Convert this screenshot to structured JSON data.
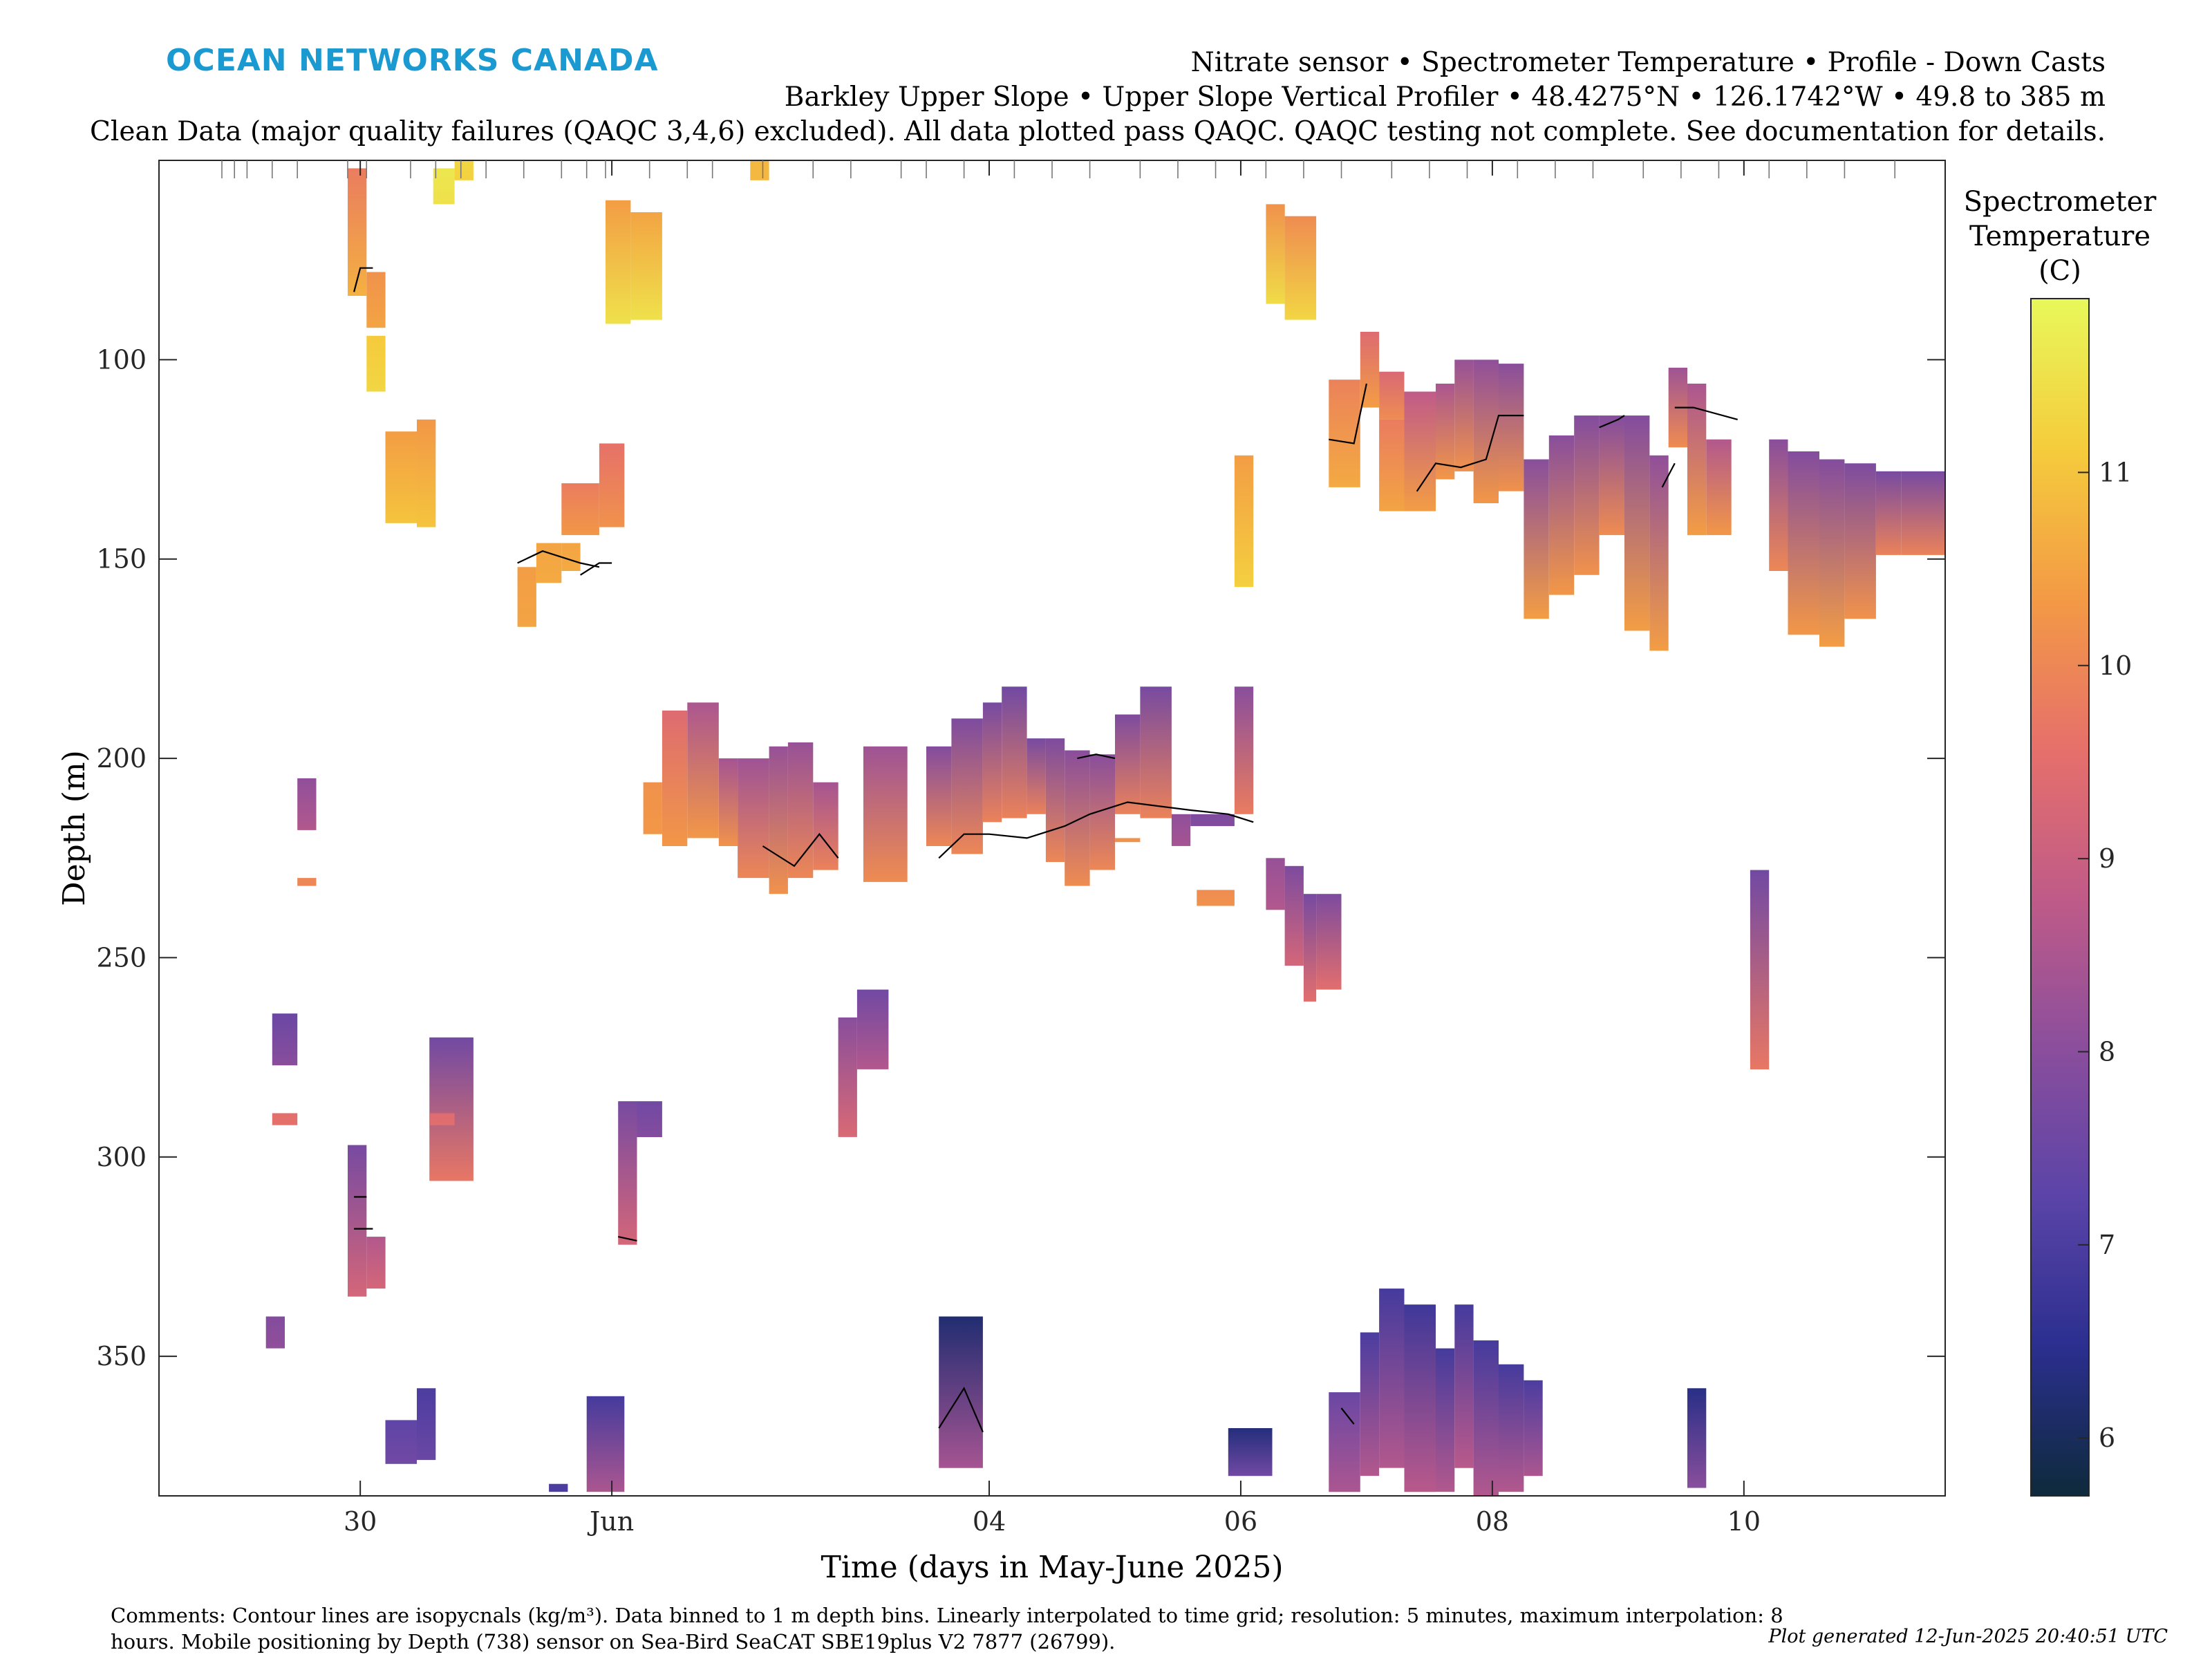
{
  "header": {
    "brand": "OCEAN NETWORKS CANADA",
    "title_line1": "Nitrate sensor • Spectrometer Temperature • Profile - Down Casts",
    "title_line2": "Barkley Upper Slope • Upper Slope Vertical Profiler • 48.4275°N • 126.1742°W • 49.8 to 385 m",
    "title_line3": "Clean Data (major quality failures (QAQC 3,4,6) excluded). All data plotted pass QAQC. QAQC testing not complete. See documentation for details."
  },
  "footer": {
    "comments": "Comments: Contour lines are isopycnals (kg/m³). Data binned to 1 m depth bins. Linearly interpolated to time grid; resolution: 5 minutes, maximum interpolation: 8 hours. Mobile positioning by Depth (738) sensor on Sea-Bird SeaCAT SBE19plus V2 7877 (26799).",
    "generated": "Plot generated 12-Jun-2025 20:40:51 UTC"
  },
  "chart_data": {
    "type": "heatmap",
    "xlabel": "Time (days in May-June 2025)",
    "ylabel": "Depth (m)",
    "xlim": [
      28.4,
      42.6
    ],
    "ylim": [
      385,
      50
    ],
    "y_reversed": true,
    "x_ticks": [
      {
        "value": 30,
        "label": "30"
      },
      {
        "value": 32,
        "label": "Jun"
      },
      {
        "value": 35,
        "label": "04"
      },
      {
        "value": 37,
        "label": "06"
      },
      {
        "value": 39,
        "label": "08"
      },
      {
        "value": 41,
        "label": "10"
      }
    ],
    "y_ticks": [
      100,
      150,
      200,
      250,
      300,
      350
    ],
    "colorbar": {
      "label_lines": [
        "Spectrometer",
        "Temperature",
        "(C)"
      ],
      "range": [
        5.7,
        11.9
      ],
      "ticks": [
        6,
        7,
        8,
        9,
        10,
        11
      ],
      "colors": [
        "#0e2a3b",
        "#2b2f8f",
        "#5b44a8",
        "#8b4e9c",
        "#c05b88",
        "#e6706a",
        "#f39a45",
        "#f5cc3c",
        "#e8f85a"
      ]
    },
    "cast_times": [
      28.9,
      29.0,
      29.1,
      29.3,
      29.5,
      29.9,
      30.05,
      30.4,
      30.6,
      30.8,
      31.0,
      31.3,
      31.6,
      31.8,
      31.95,
      32.3,
      32.6,
      32.8,
      33.2,
      33.6,
      33.9,
      34.3,
      34.5,
      34.8,
      35.2,
      35.5,
      35.8,
      36.2,
      36.5,
      36.8,
      37.2,
      37.5,
      37.8,
      38.2,
      38.5,
      38.8,
      39.2,
      39.5,
      39.8,
      40.2,
      40.5,
      40.8,
      41.2,
      41.5,
      41.8,
      42.2
    ],
    "cells": [
      {
        "x0": 29.9,
        "x1": 30.05,
        "y0": 52,
        "y1": 84,
        "t0": 9.8,
        "t1": 10.7
      },
      {
        "x0": 30.05,
        "x1": 30.2,
        "y0": 78,
        "y1": 92,
        "t0": 10.2,
        "t1": 10.5
      },
      {
        "x0": 30.05,
        "x1": 30.2,
        "y0": 94,
        "y1": 108,
        "t0": 11.1,
        "t1": 11.3
      },
      {
        "x0": 30.58,
        "x1": 30.75,
        "y0": 52,
        "y1": 61,
        "t0": 11.6,
        "t1": 11.5
      },
      {
        "x0": 30.75,
        "x1": 30.9,
        "y0": 50,
        "y1": 55,
        "t0": 11.3,
        "t1": 11.2
      },
      {
        "x0": 31.95,
        "x1": 32.15,
        "y0": 60,
        "y1": 91,
        "t0": 10.4,
        "t1": 11.5
      },
      {
        "x0": 32.15,
        "x1": 32.4,
        "y0": 63,
        "y1": 90,
        "t0": 10.5,
        "t1": 11.5
      },
      {
        "x0": 30.2,
        "x1": 30.45,
        "y0": 118,
        "y1": 141,
        "t0": 10.4,
        "t1": 11.0
      },
      {
        "x0": 30.45,
        "x1": 30.6,
        "y0": 115,
        "y1": 142,
        "t0": 10.3,
        "t1": 11.0
      },
      {
        "x0": 31.25,
        "x1": 31.4,
        "y0": 152,
        "y1": 167,
        "t0": 10.4,
        "t1": 10.5
      },
      {
        "x0": 31.4,
        "x1": 31.6,
        "y0": 146,
        "y1": 156,
        "t0": 10.5,
        "t1": 10.6
      },
      {
        "x0": 31.6,
        "x1": 31.75,
        "y0": 146,
        "y1": 153,
        "t0": 10.5,
        "t1": 10.6
      },
      {
        "x0": 31.6,
        "x1": 31.9,
        "y0": 131,
        "y1": 144,
        "t0": 9.8,
        "t1": 10.3
      },
      {
        "x0": 31.9,
        "x1": 32.1,
        "y0": 121,
        "y1": 142,
        "t0": 9.6,
        "t1": 10.2
      },
      {
        "x0": 33.1,
        "x1": 33.25,
        "y0": 50,
        "y1": 55,
        "t0": 10.8,
        "t1": 10.8
      },
      {
        "x0": 36.95,
        "x1": 37.1,
        "y0": 124,
        "y1": 157,
        "t0": 10.4,
        "t1": 11.2
      },
      {
        "x0": 37.2,
        "x1": 37.35,
        "y0": 61,
        "y1": 86,
        "t0": 10.2,
        "t1": 11.4
      },
      {
        "x0": 37.35,
        "x1": 37.6,
        "y0": 64,
        "y1": 90,
        "t0": 10.1,
        "t1": 11.3
      },
      {
        "x0": 37.7,
        "x1": 37.95,
        "y0": 105,
        "y1": 132,
        "t0": 9.9,
        "t1": 10.6
      },
      {
        "x0": 37.95,
        "x1": 38.1,
        "y0": 93,
        "y1": 112,
        "t0": 9.4,
        "t1": 10.4
      },
      {
        "x0": 38.1,
        "x1": 38.3,
        "y0": 103,
        "y1": 115,
        "t0": 9.3,
        "t1": 10.1
      },
      {
        "x0": 38.1,
        "x1": 38.3,
        "y0": 115,
        "y1": 138,
        "t0": 9.8,
        "t1": 10.5
      },
      {
        "x0": 38.3,
        "x1": 38.55,
        "y0": 108,
        "y1": 138,
        "t0": 8.8,
        "t1": 10.4
      },
      {
        "x0": 38.55,
        "x1": 38.7,
        "y0": 106,
        "y1": 130,
        "t0": 8.5,
        "t1": 10.3
      },
      {
        "x0": 38.7,
        "x1": 38.85,
        "y0": 100,
        "y1": 128,
        "t0": 8.2,
        "t1": 10.2
      },
      {
        "x0": 38.85,
        "x1": 39.05,
        "y0": 100,
        "y1": 136,
        "t0": 8.1,
        "t1": 10.3
      },
      {
        "x0": 39.05,
        "x1": 39.25,
        "y0": 101,
        "y1": 133,
        "t0": 8.0,
        "t1": 10.2
      },
      {
        "x0": 39.25,
        "x1": 39.45,
        "y0": 125,
        "y1": 165,
        "t0": 8.0,
        "t1": 10.4
      },
      {
        "x0": 39.45,
        "x1": 39.65,
        "y0": 119,
        "y1": 159,
        "t0": 8.0,
        "t1": 10.3
      },
      {
        "x0": 39.65,
        "x1": 39.85,
        "y0": 114,
        "y1": 154,
        "t0": 7.9,
        "t1": 10.2
      },
      {
        "x0": 39.85,
        "x1": 40.05,
        "y0": 114,
        "y1": 144,
        "t0": 7.9,
        "t1": 10.1
      },
      {
        "x0": 40.05,
        "x1": 40.25,
        "y0": 114,
        "y1": 168,
        "t0": 7.9,
        "t1": 10.4
      },
      {
        "x0": 40.25,
        "x1": 40.4,
        "y0": 124,
        "y1": 173,
        "t0": 8.1,
        "t1": 10.4
      },
      {
        "x0": 40.4,
        "x1": 40.55,
        "y0": 102,
        "y1": 122,
        "t0": 8.3,
        "t1": 10.1
      },
      {
        "x0": 40.55,
        "x1": 40.7,
        "y0": 106,
        "y1": 144,
        "t0": 8.5,
        "t1": 10.4
      },
      {
        "x0": 40.7,
        "x1": 40.9,
        "y0": 120,
        "y1": 144,
        "t0": 8.6,
        "t1": 10.3
      },
      {
        "x0": 41.2,
        "x1": 41.35,
        "y0": 120,
        "y1": 153,
        "t0": 8.0,
        "t1": 10.0
      },
      {
        "x0": 41.35,
        "x1": 41.6,
        "y0": 123,
        "y1": 169,
        "t0": 7.9,
        "t1": 10.3
      },
      {
        "x0": 41.6,
        "x1": 41.8,
        "y0": 125,
        "y1": 172,
        "t0": 7.9,
        "t1": 10.4
      },
      {
        "x0": 41.8,
        "x1": 42.05,
        "y0": 126,
        "y1": 165,
        "t0": 7.8,
        "t1": 10.2
      },
      {
        "x0": 42.05,
        "x1": 42.25,
        "y0": 128,
        "y1": 149,
        "t0": 7.7,
        "t1": 9.9
      },
      {
        "x0": 42.25,
        "x1": 42.6,
        "y0": 128,
        "y1": 149,
        "t0": 7.7,
        "t1": 9.9
      },
      {
        "x0": 32.25,
        "x1": 32.4,
        "y0": 206,
        "y1": 219,
        "t0": 10.2,
        "t1": 10.3
      },
      {
        "x0": 32.4,
        "x1": 32.6,
        "y0": 188,
        "y1": 222,
        "t0": 9.4,
        "t1": 10.3
      },
      {
        "x0": 32.6,
        "x1": 32.85,
        "y0": 186,
        "y1": 220,
        "t0": 8.5,
        "t1": 10.3
      },
      {
        "x0": 32.85,
        "x1": 33.0,
        "y0": 200,
        "y1": 222,
        "t0": 8.4,
        "t1": 10.2
      },
      {
        "x0": 33.0,
        "x1": 33.25,
        "y0": 200,
        "y1": 230,
        "t0": 8.3,
        "t1": 10.0
      },
      {
        "x0": 33.25,
        "x1": 33.4,
        "y0": 197,
        "y1": 234,
        "t0": 8.2,
        "t1": 10.2
      },
      {
        "x0": 33.4,
        "x1": 33.6,
        "y0": 196,
        "y1": 230,
        "t0": 8.2,
        "t1": 10.0
      },
      {
        "x0": 33.6,
        "x1": 33.8,
        "y0": 206,
        "y1": 228,
        "t0": 8.4,
        "t1": 9.9
      },
      {
        "x0": 34.0,
        "x1": 34.35,
        "y0": 197,
        "y1": 231,
        "t0": 8.3,
        "t1": 10.1
      },
      {
        "x0": 34.5,
        "x1": 34.7,
        "y0": 197,
        "y1": 222,
        "t0": 7.9,
        "t1": 10.0
      },
      {
        "x0": 34.7,
        "x1": 34.95,
        "y0": 190,
        "y1": 224,
        "t0": 7.8,
        "t1": 10.0
      },
      {
        "x0": 34.95,
        "x1": 35.1,
        "y0": 186,
        "y1": 216,
        "t0": 7.7,
        "t1": 9.9
      },
      {
        "x0": 35.1,
        "x1": 35.3,
        "y0": 182,
        "y1": 215,
        "t0": 7.6,
        "t1": 9.9
      },
      {
        "x0": 35.3,
        "x1": 35.45,
        "y0": 195,
        "y1": 214,
        "t0": 7.7,
        "t1": 9.9
      },
      {
        "x0": 35.45,
        "x1": 35.6,
        "y0": 195,
        "y1": 226,
        "t0": 7.8,
        "t1": 10.0
      },
      {
        "x0": 35.6,
        "x1": 35.8,
        "y0": 198,
        "y1": 232,
        "t0": 8.0,
        "t1": 10.1
      },
      {
        "x0": 35.8,
        "x1": 36.0,
        "y0": 199,
        "y1": 228,
        "t0": 8.0,
        "t1": 10.0
      },
      {
        "x0": 36.0,
        "x1": 36.2,
        "y0": 189,
        "y1": 214,
        "t0": 7.8,
        "t1": 9.9
      },
      {
        "x0": 36.2,
        "x1": 36.45,
        "y0": 182,
        "y1": 215,
        "t0": 7.7,
        "t1": 9.9
      },
      {
        "x0": 36.45,
        "x1": 36.6,
        "y0": 214,
        "y1": 222,
        "t0": 8.1,
        "t1": 8.4
      },
      {
        "x0": 36.6,
        "x1": 36.95,
        "y0": 214,
        "y1": 217,
        "t0": 7.8,
        "t1": 7.9
      },
      {
        "x0": 36.65,
        "x1": 36.95,
        "y0": 233,
        "y1": 237,
        "t0": 10.1,
        "t1": 10.2
      },
      {
        "x0": 36.95,
        "x1": 37.1,
        "y0": 182,
        "y1": 214,
        "t0": 8.0,
        "t1": 9.8
      },
      {
        "x0": 36.0,
        "x1": 36.2,
        "y0": 220,
        "y1": 221,
        "t0": 10.2,
        "t1": 10.2
      },
      {
        "x0": 37.2,
        "x1": 37.35,
        "y0": 225,
        "y1": 238,
        "t0": 8.2,
        "t1": 8.6
      },
      {
        "x0": 37.35,
        "x1": 37.5,
        "y0": 227,
        "y1": 252,
        "t0": 7.8,
        "t1": 9.2
      },
      {
        "x0": 37.5,
        "x1": 37.6,
        "y0": 234,
        "y1": 261,
        "t0": 7.7,
        "t1": 9.5
      },
      {
        "x0": 37.6,
        "x1": 37.8,
        "y0": 234,
        "y1": 258,
        "t0": 7.8,
        "t1": 9.5
      },
      {
        "x0": 29.5,
        "x1": 29.65,
        "y0": 205,
        "y1": 218,
        "t0": 8.1,
        "t1": 8.6
      },
      {
        "x0": 29.5,
        "x1": 29.65,
        "y0": 230,
        "y1": 232,
        "t0": 10.0,
        "t1": 10.0
      },
      {
        "x0": 41.05,
        "x1": 41.2,
        "y0": 228,
        "y1": 278,
        "t0": 7.6,
        "t1": 9.7
      },
      {
        "x0": 29.3,
        "x1": 29.5,
        "y0": 264,
        "y1": 277,
        "t0": 7.5,
        "t1": 8.0
      },
      {
        "x0": 29.3,
        "x1": 29.5,
        "y0": 289,
        "y1": 292,
        "t0": 9.5,
        "t1": 9.6
      },
      {
        "x0": 30.55,
        "x1": 30.9,
        "y0": 270,
        "y1": 306,
        "t0": 7.6,
        "t1": 9.7
      },
      {
        "x0": 30.55,
        "x1": 30.75,
        "y0": 289,
        "y1": 292,
        "t0": 9.4,
        "t1": 9.5
      },
      {
        "x0": 33.8,
        "x1": 33.95,
        "y0": 265,
        "y1": 295,
        "t0": 8.0,
        "t1": 9.3
      },
      {
        "x0": 33.95,
        "x1": 34.2,
        "y0": 258,
        "y1": 278,
        "t0": 7.6,
        "t1": 8.6
      },
      {
        "x0": 32.05,
        "x1": 32.2,
        "y0": 286,
        "y1": 322,
        "t0": 7.7,
        "t1": 9.2
      },
      {
        "x0": 32.2,
        "x1": 32.4,
        "y0": 286,
        "y1": 295,
        "t0": 7.6,
        "t1": 7.9
      },
      {
        "x0": 29.9,
        "x1": 30.05,
        "y0": 297,
        "y1": 335,
        "t0": 7.7,
        "t1": 9.2
      },
      {
        "x0": 30.05,
        "x1": 30.2,
        "y0": 320,
        "y1": 333,
        "t0": 8.6,
        "t1": 9.2
      },
      {
        "x0": 29.25,
        "x1": 29.4,
        "y0": 340,
        "y1": 348,
        "t0": 7.9,
        "t1": 8.1
      },
      {
        "x0": 30.2,
        "x1": 30.45,
        "y0": 366,
        "y1": 377,
        "t0": 7.3,
        "t1": 7.6
      },
      {
        "x0": 30.45,
        "x1": 30.6,
        "y0": 358,
        "y1": 376,
        "t0": 7.0,
        "t1": 7.5
      },
      {
        "x0": 31.5,
        "x1": 31.65,
        "y0": 382,
        "y1": 384,
        "t0": 7.0,
        "t1": 7.0
      },
      {
        "x0": 31.8,
        "x1": 32.1,
        "y0": 360,
        "y1": 384,
        "t0": 6.9,
        "t1": 8.5
      },
      {
        "x0": 34.6,
        "x1": 34.95,
        "y0": 340,
        "y1": 378,
        "t0": 6.2,
        "t1": 8.4
      },
      {
        "x0": 36.9,
        "x1": 37.25,
        "y0": 368,
        "y1": 380,
        "t0": 6.3,
        "t1": 7.6
      },
      {
        "x0": 37.7,
        "x1": 37.95,
        "y0": 359,
        "y1": 384,
        "t0": 7.5,
        "t1": 8.5
      },
      {
        "x0": 37.95,
        "x1": 38.1,
        "y0": 344,
        "y1": 380,
        "t0": 7.0,
        "t1": 8.6
      },
      {
        "x0": 38.1,
        "x1": 38.3,
        "y0": 333,
        "y1": 378,
        "t0": 6.9,
        "t1": 8.6
      },
      {
        "x0": 38.3,
        "x1": 38.55,
        "y0": 337,
        "y1": 384,
        "t0": 6.8,
        "t1": 8.7
      },
      {
        "x0": 38.55,
        "x1": 38.7,
        "y0": 348,
        "y1": 384,
        "t0": 6.9,
        "t1": 8.6
      },
      {
        "x0": 38.7,
        "x1": 38.85,
        "y0": 337,
        "y1": 378,
        "t0": 6.9,
        "t1": 8.7
      },
      {
        "x0": 38.85,
        "x1": 39.05,
        "y0": 346,
        "y1": 385,
        "t0": 6.9,
        "t1": 8.6
      },
      {
        "x0": 39.05,
        "x1": 39.25,
        "y0": 352,
        "y1": 384,
        "t0": 6.9,
        "t1": 8.6
      },
      {
        "x0": 39.25,
        "x1": 39.4,
        "y0": 356,
        "y1": 380,
        "t0": 7.0,
        "t1": 8.5
      },
      {
        "x0": 40.55,
        "x1": 40.7,
        "y0": 358,
        "y1": 383,
        "t0": 6.4,
        "t1": 8.0
      }
    ],
    "isopycnals": [
      [
        [
          29.95,
          83
        ],
        [
          30.0,
          77
        ],
        [
          30.1,
          77
        ]
      ],
      [
        [
          31.25,
          151
        ],
        [
          31.45,
          148
        ],
        [
          31.75,
          151
        ],
        [
          31.9,
          152
        ]
      ],
      [
        [
          31.75,
          154
        ],
        [
          31.9,
          151
        ],
        [
          32.0,
          151
        ]
      ],
      [
        [
          33.2,
          222
        ],
        [
          33.45,
          227
        ],
        [
          33.65,
          219
        ],
        [
          33.8,
          225
        ]
      ],
      [
        [
          34.6,
          225
        ],
        [
          34.8,
          219
        ],
        [
          35.0,
          219
        ],
        [
          35.3,
          220
        ],
        [
          35.6,
          217
        ],
        [
          35.8,
          214
        ],
        [
          36.1,
          211
        ],
        [
          36.6,
          213
        ],
        [
          36.9,
          214
        ],
        [
          37.1,
          216
        ]
      ],
      [
        [
          35.7,
          200
        ],
        [
          35.85,
          199
        ],
        [
          36.0,
          200
        ]
      ],
      [
        [
          37.7,
          120
        ],
        [
          37.9,
          121
        ],
        [
          38.0,
          106
        ]
      ],
      [
        [
          38.4,
          133
        ],
        [
          38.55,
          126
        ],
        [
          38.75,
          127
        ],
        [
          38.95,
          125
        ],
        [
          39.05,
          114
        ],
        [
          39.25,
          114
        ]
      ],
      [
        [
          39.85,
          117
        ],
        [
          40.0,
          115
        ],
        [
          40.05,
          114
        ]
      ],
      [
        [
          40.45,
          112
        ],
        [
          40.6,
          112
        ],
        [
          40.95,
          115
        ]
      ],
      [
        [
          40.35,
          132
        ],
        [
          40.45,
          126
        ]
      ],
      [
        [
          29.95,
          318
        ],
        [
          30.1,
          318
        ]
      ],
      [
        [
          32.05,
          320
        ],
        [
          32.2,
          321
        ]
      ],
      [
        [
          29.95,
          310
        ],
        [
          30.05,
          310
        ]
      ],
      [
        [
          34.6,
          368
        ],
        [
          34.8,
          358
        ],
        [
          34.95,
          369
        ]
      ],
      [
        [
          37.8,
          363
        ],
        [
          37.9,
          367
        ]
      ]
    ]
  }
}
